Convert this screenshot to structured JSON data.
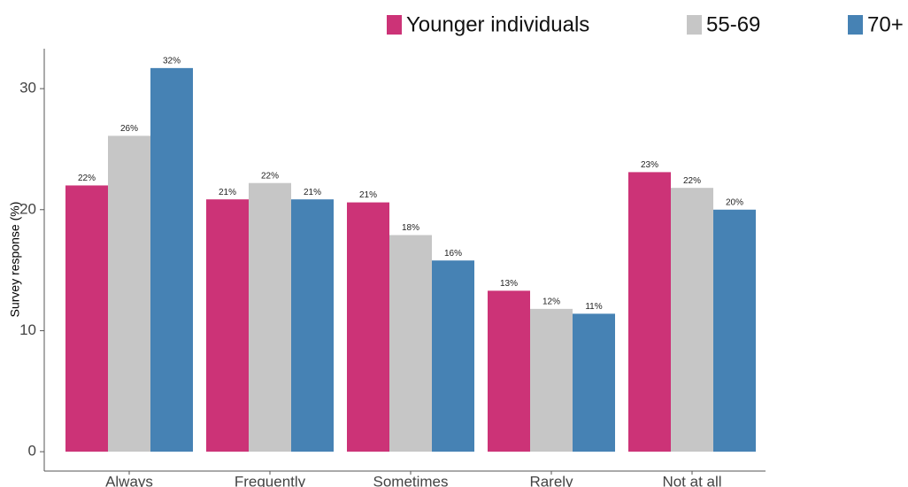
{
  "chart_data": {
    "type": "bar",
    "y_label": "Survey response (%)",
    "categories": [
      "Always",
      "Frequently",
      "Sometimes",
      "Rarely",
      "Not at all"
    ],
    "series": [
      {
        "name": "Younger individuals",
        "color": "#cc3377",
        "values": [
          22.0,
          20.85,
          20.6,
          13.3,
          23.1
        ],
        "value_labels": [
          "22%",
          "21%",
          "21%",
          "13%",
          "23%"
        ]
      },
      {
        "name": "55-69",
        "color": "#c6c6c6",
        "values": [
          26.1,
          22.2,
          17.9,
          11.8,
          21.8
        ],
        "value_labels": [
          "26%",
          "22%",
          "18%",
          "12%",
          "22%"
        ]
      },
      {
        "name": "70+",
        "color": "#4682b4",
        "values": [
          31.7,
          20.85,
          15.8,
          11.4,
          20.0
        ],
        "value_labels": [
          "32%",
          "21%",
          "16%",
          "11%",
          "20%"
        ]
      }
    ],
    "ylim": [
      -1.6,
      33.3
    ],
    "yticks": [
      0,
      10,
      20,
      30
    ],
    "grid": false,
    "legend": "top"
  }
}
